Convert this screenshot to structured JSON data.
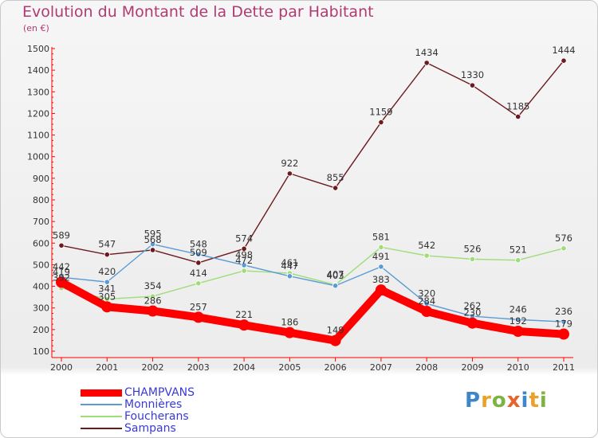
{
  "header": {
    "title": "Evolution du Montant de la Dette par Habitant",
    "unit": "(en €)"
  },
  "logo": {
    "text": "Proxiti",
    "letters": [
      {
        "ch": "P",
        "color": "#3e86c8"
      },
      {
        "ch": "r",
        "color": "#e8a22a"
      },
      {
        "ch": "o",
        "color": "#7cb342"
      },
      {
        "ch": "x",
        "color": "#e8632a"
      },
      {
        "ch": "i",
        "color": "#3e86c8"
      },
      {
        "ch": "t",
        "color": "#e8a22a"
      },
      {
        "ch": "i",
        "color": "#7cb342"
      }
    ]
  },
  "chart_data": {
    "type": "line",
    "title": "Evolution du Montant de la Dette par Habitant",
    "ylabel": "(en €)",
    "xlabel": "",
    "ylim": [
      100,
      1500
    ],
    "yticks": [
      100,
      200,
      300,
      400,
      500,
      600,
      700,
      800,
      900,
      1000,
      1100,
      1200,
      1300,
      1400,
      1500
    ],
    "grid": false,
    "legend_position": "bottom-left",
    "categories": [
      "2000",
      "2001",
      "2002",
      "2003",
      "2004",
      "2005",
      "2006",
      "2007",
      "2008",
      "2009",
      "2010",
      "2011"
    ],
    "series": [
      {
        "name": "Sampans",
        "color": "#6b1a1e",
        "values": [
          589,
          547,
          568,
          509,
          574,
          922,
          855,
          1159,
          1434,
          1330,
          1185,
          1444
        ]
      },
      {
        "name": "Foucherans",
        "color": "#9edd7a",
        "values": [
          392,
          341,
          354,
          414,
          472,
          461,
          407,
          581,
          542,
          526,
          521,
          576
        ]
      },
      {
        "name": "Monnières",
        "color": "#5a9bd5",
        "values": [
          442,
          420,
          595,
          548,
          498,
          447,
          403,
          491,
          320,
          262,
          246,
          236
        ]
      },
      {
        "name": "CHAMPVANS",
        "color": "#ff0000",
        "values": [
          419,
          305,
          286,
          257,
          221,
          186,
          149,
          383,
          284,
          230,
          192,
          179
        ]
      }
    ]
  }
}
